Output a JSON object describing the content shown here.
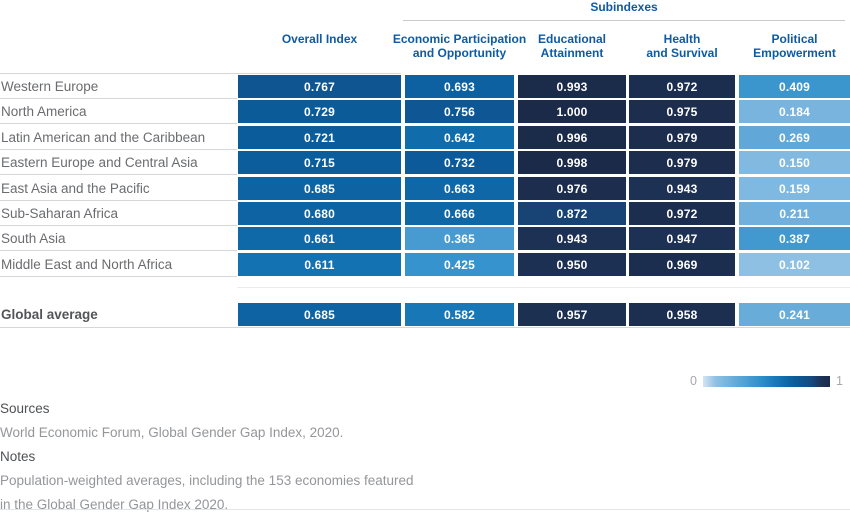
{
  "header": {
    "subindexes_label": "Subindexes",
    "column_lines": [
      [
        "Overall Index"
      ],
      [
        "Economic Participation",
        "and Opportunity"
      ],
      [
        "Educational",
        "Attainment"
      ],
      [
        "Health",
        "and Survival"
      ],
      [
        "Political",
        "Empowerment"
      ]
    ]
  },
  "chart_data": {
    "type": "heatmap",
    "columns": [
      "Overall Index",
      "Economic Participation and Opportunity",
      "Educational Attainment",
      "Health and Survival",
      "Political Empowerment"
    ],
    "rows": [
      {
        "region": "Western Europe",
        "values": [
          0.767,
          0.693,
          0.993,
          0.972,
          0.409
        ]
      },
      {
        "region": "North America",
        "values": [
          0.729,
          0.756,
          1.0,
          0.975,
          0.184
        ]
      },
      {
        "region": "Latin American and the Caribbean",
        "values": [
          0.721,
          0.642,
          0.996,
          0.979,
          0.269
        ]
      },
      {
        "region": "Eastern Europe and Central Asia",
        "values": [
          0.715,
          0.732,
          0.998,
          0.979,
          0.15
        ]
      },
      {
        "region": "East Asia and the Pacific",
        "values": [
          0.685,
          0.663,
          0.976,
          0.943,
          0.159
        ]
      },
      {
        "region": "Sub-Saharan Africa",
        "values": [
          0.68,
          0.666,
          0.872,
          0.972,
          0.211
        ]
      },
      {
        "region": "South Asia",
        "values": [
          0.661,
          0.365,
          0.943,
          0.947,
          0.387
        ]
      },
      {
        "region": "Middle East and North Africa",
        "values": [
          0.611,
          0.425,
          0.95,
          0.969,
          0.102
        ]
      },
      {
        "region": "Global average",
        "values": [
          0.685,
          0.582,
          0.957,
          0.958,
          0.241
        ],
        "is_average": true
      }
    ],
    "value_decimals": 3,
    "scale": {
      "min": 0,
      "max": 1,
      "stops": [
        {
          "t": 0.0,
          "color": "#d3e5f4"
        },
        {
          "t": 0.1,
          "color": "#8fc0e4"
        },
        {
          "t": 0.25,
          "color": "#66abd9"
        },
        {
          "t": 0.45,
          "color": "#3090cb"
        },
        {
          "t": 0.6,
          "color": "#1474b4"
        },
        {
          "t": 0.72,
          "color": "#0b5c9b"
        },
        {
          "t": 0.85,
          "color": "#154a80"
        },
        {
          "t": 0.93,
          "color": "#1d3357"
        },
        {
          "t": 1.0,
          "color": "#1b2a49"
        }
      ]
    },
    "legend": {
      "min_label": "0",
      "max_label": "1"
    }
  },
  "footer": {
    "sources_heading": "Sources",
    "sources_text": "World Economic Forum, Global Gender Gap Index, 2020.",
    "notes_heading": "Notes",
    "notes_lines": [
      "Population-weighted averages, including the 153 economies featured",
      "in the Global Gender Gap Index 2020."
    ]
  },
  "colors": {
    "header_text": "#0d5ba4",
    "row_label": "#6b6c6f",
    "average_label": "#545559",
    "cell_text": "#ffffff",
    "separator": "#d6d7d9",
    "header_rule": "#c9cacc",
    "footer_heading": "#4f5154",
    "footer_text": "#949699",
    "legend_label": "#a6a8ab"
  }
}
